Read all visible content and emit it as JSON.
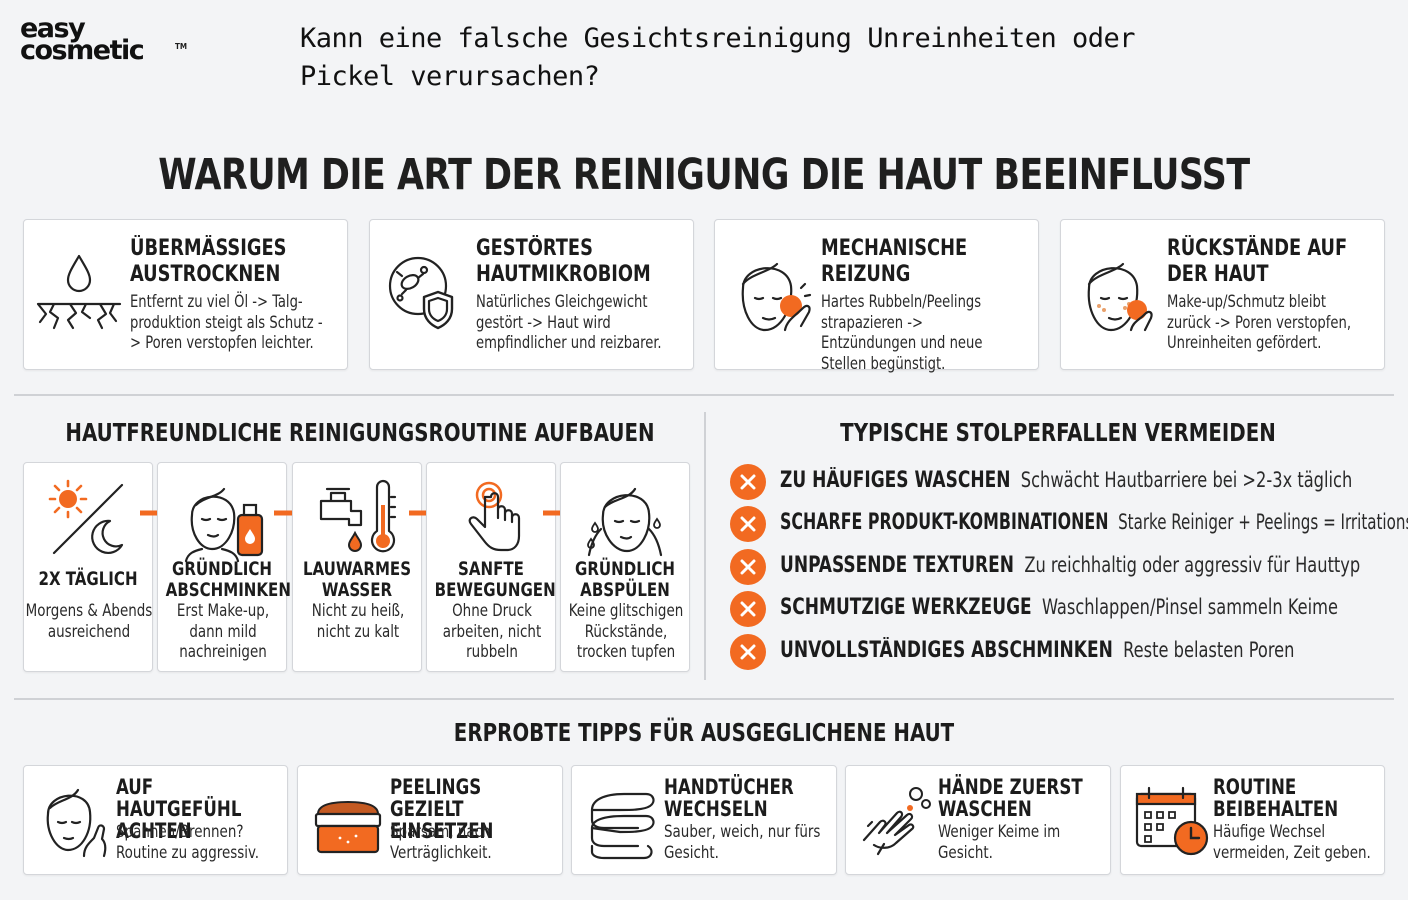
{
  "brand": {
    "line1": "easy",
    "line2": "cosmetic",
    "tm": "TM"
  },
  "question": "Kann eine falsche Gesichtsreinigung Unreinheiten oder Pickel verursachen?",
  "main_title": "WARUM DIE ART DER REINIGUNG DIE HAUT BEEINFLUSST",
  "causes": [
    {
      "title": "ÜBERMÄSSIGES AUSTROCKNEN",
      "desc": "Entfernt zu viel Öl -> Talg-produktion steigt als Schutz -> Poren verstopfen leichter.",
      "icon": "dry-skin-icon"
    },
    {
      "title": "GESTÖRTES HAUTMIKROBIOM",
      "desc": "Natürliches Gleichgewicht gestört -> Haut wird empfindlicher und reizbarer.",
      "icon": "microbiome-shield-icon"
    },
    {
      "title": "MECHANISCHE REIZUNG",
      "desc": "Hartes Rubbeln/Peelings strapazieren -> Entzündungen und neue Stellen begünstigt.",
      "icon": "face-scrubbing-icon"
    },
    {
      "title": "RÜCKSTÄNDE AUF DER HAUT",
      "desc": "Make-up/Schmutz bleibt zurück -> Poren verstopfen, Unreinheiten gefördert.",
      "icon": "face-residue-icon"
    }
  ],
  "routine": {
    "title": "HAUTFREUNDLICHE REINIGUNGSROUTINE AUFBAUEN",
    "steps": [
      {
        "title": "2X TÄGLICH",
        "desc": "Morgens & Abends ausreichend",
        "icon": "sun-moon-icon"
      },
      {
        "title": "GRÜNDLICH ABSCHMINKEN",
        "desc": "Erst Make-up, dann mild nachreinigen",
        "icon": "makeup-remover-icon"
      },
      {
        "title": "LAUWARMES WASSER",
        "desc": "Nicht zu heiß, nicht zu kalt",
        "icon": "faucet-thermometer-icon"
      },
      {
        "title": "SANFTE BEWEGUNGEN",
        "desc": "Ohne Druck arbeiten, nicht rubbeln",
        "icon": "gentle-touch-icon"
      },
      {
        "title": "GRÜNDLICH ABSPÜLEN",
        "desc": "Keine glitschigen Rückstände, trocken tupfen",
        "icon": "face-rinse-icon"
      }
    ]
  },
  "pitfalls": {
    "title": "TYPISCHE STOLPERFALLEN VERMEIDEN",
    "items": [
      {
        "title": "ZU HÄUFIGES WASCHEN",
        "desc": "Schwächt Hautbarriere bei >2-3x täglich"
      },
      {
        "title": "SCHARFE PRODUKT-KOMBINATIONEN",
        "desc": "Starke Reiniger + Peelings = Irritationsrisiko"
      },
      {
        "title": "UNPASSENDE TEXTUREN",
        "desc": "Zu reichhaltig oder aggressiv für Hauttyp"
      },
      {
        "title": "SCHMUTZIGE WERKZEUGE",
        "desc": "Waschlappen/Pinsel sammeln Keime"
      },
      {
        "title": "UNVOLLSTÄNDIGES ABSCHMINKEN",
        "desc": "Reste belasten Poren"
      }
    ]
  },
  "tips": {
    "title": "ERPROBTE TIPPS FÜR AUSGEGLICHENE HAUT",
    "items": [
      {
        "title": "AUF HAUTGEFÜHL ACHTEN",
        "desc": "Spannen/Brennen? Routine zu aggressiv.",
        "icon": "face-feeling-icon"
      },
      {
        "title": "PEELINGS GEZIELT EINSETZEN",
        "desc": "Sparsam, nach Verträglichkeit.",
        "icon": "peeling-jar-icon"
      },
      {
        "title": "HANDTÜCHER WECHSELN",
        "desc": "Sauber, weich, nur fürs Gesicht.",
        "icon": "towels-icon"
      },
      {
        "title": "HÄNDE ZUERST WASCHEN",
        "desc": "Weniger Keime im Gesicht.",
        "icon": "hand-washing-icon"
      },
      {
        "title": "ROUTINE BEIBEHALTEN",
        "desc": "Häufige Wechsel vermeiden, Zeit geben.",
        "icon": "calendar-clock-icon"
      }
    ]
  },
  "colors": {
    "accent": "#f26a21",
    "text": "#1c1c1c",
    "background": "#f3f4f6"
  }
}
